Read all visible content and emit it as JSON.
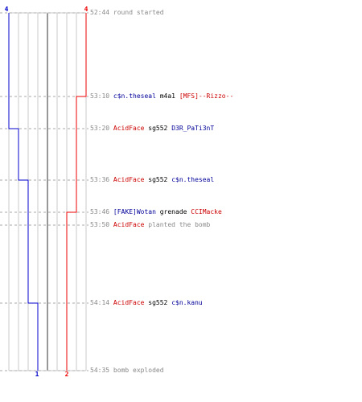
{
  "colors": {
    "team_red": "#ee0000",
    "team_blue": "#0000cc",
    "grid": "#c8c8c8",
    "center": "#777777",
    "time": "#888888",
    "guide": "#aaaaaa"
  },
  "counts": {
    "blue_start": "4",
    "red_start": "4",
    "blue_end": "1",
    "red_end": "2"
  },
  "events": [
    {
      "time": "52:44",
      "parts": [
        {
          "text": "round started",
          "color": "gray"
        }
      ]
    },
    {
      "time": "53:10",
      "parts": [
        {
          "text": "c$n.theseal",
          "color": "blue"
        },
        {
          "text": "m4a1",
          "color": "blk"
        },
        {
          "text": "[MFS]--Rizzo--",
          "color": "red"
        }
      ]
    },
    {
      "time": "53:20",
      "parts": [
        {
          "text": "AcidFace",
          "color": "red"
        },
        {
          "text": "sg552",
          "color": "blk"
        },
        {
          "text": "D3R_PaTi3nT",
          "color": "blue"
        }
      ]
    },
    {
      "time": "53:36",
      "parts": [
        {
          "text": "AcidFace",
          "color": "red"
        },
        {
          "text": "sg552",
          "color": "blk"
        },
        {
          "text": "c$n.theseal",
          "color": "blue"
        }
      ]
    },
    {
      "time": "53:46",
      "parts": [
        {
          "text": "[FAKE]Wotan",
          "color": "blue"
        },
        {
          "text": "grenade",
          "color": "blk"
        },
        {
          "text": "CCIMacke",
          "color": "red"
        }
      ]
    },
    {
      "time": "53:50",
      "parts": [
        {
          "text": "AcidFace",
          "color": "red"
        },
        {
          "text": "planted the bomb",
          "color": "gray"
        }
      ]
    },
    {
      "time": "54:14",
      "parts": [
        {
          "text": "AcidFace",
          "color": "red"
        },
        {
          "text": "sg552",
          "color": "blk"
        },
        {
          "text": "c$n.kanu",
          "color": "blue"
        }
      ]
    },
    {
      "time": "54:35",
      "parts": [
        {
          "text": "bomb exploded",
          "color": "gray"
        }
      ]
    }
  ]
}
